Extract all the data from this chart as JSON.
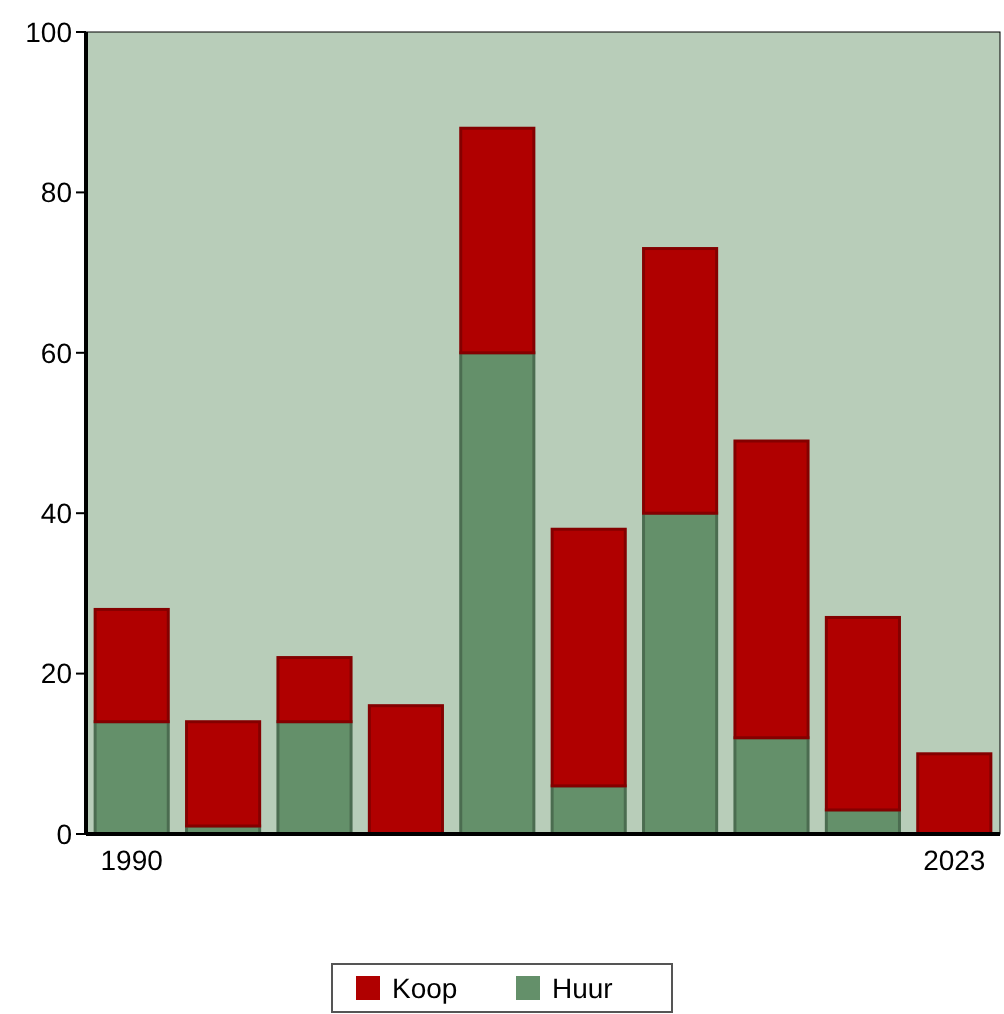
{
  "chart_data": {
    "type": "bar",
    "stacked": true,
    "categories": [
      "1990",
      null,
      null,
      null,
      null,
      null,
      null,
      null,
      null,
      "2023"
    ],
    "series": [
      {
        "name": "Huur",
        "color": "#64906a",
        "values": [
          14,
          1,
          14,
          0,
          60,
          6,
          40,
          12,
          3,
          0
        ]
      },
      {
        "name": "Koop",
        "color": "#b00000",
        "values": [
          14,
          13,
          8,
          16,
          28,
          32,
          33,
          37,
          24,
          10
        ]
      }
    ],
    "ylim": [
      0,
      100
    ],
    "yticks": [
      0,
      20,
      40,
      60,
      80,
      100
    ],
    "grid": false,
    "legend": "bottom"
  }
}
